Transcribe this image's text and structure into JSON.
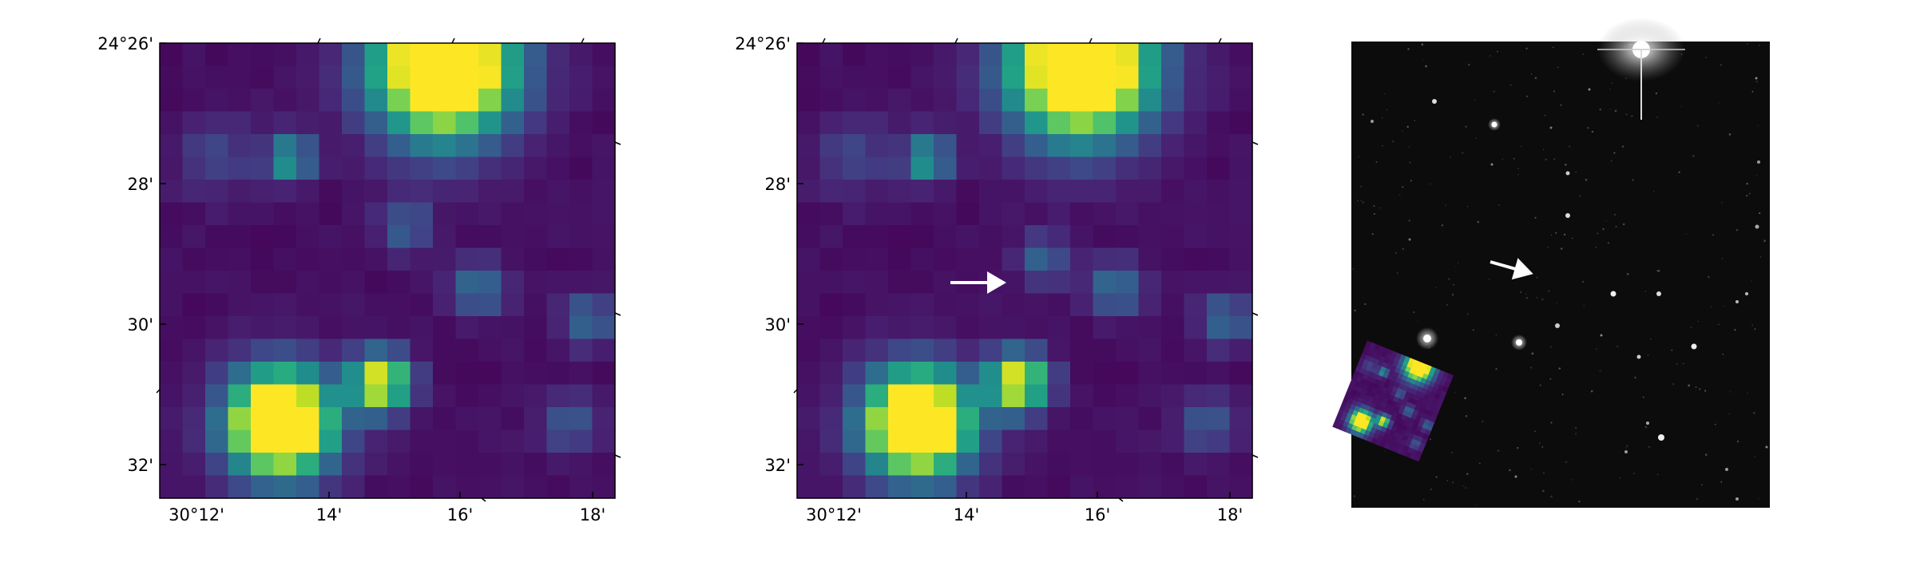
{
  "panels": [
    {
      "id": "panel-1",
      "y_tick_labels": [
        "24°26'",
        "28'",
        "30'",
        "32'"
      ],
      "x_tick_labels": [
        "30°12'",
        "14'",
        "16'",
        "18'"
      ],
      "arrow": false
    },
    {
      "id": "panel-2",
      "y_tick_labels": [
        "24°26'",
        "28'",
        "30'",
        "32'"
      ],
      "x_tick_labels": [
        "30°12'",
        "14'",
        "16'",
        "18'"
      ],
      "arrow": true
    },
    {
      "id": "panel-3",
      "description_free": true
    }
  ],
  "colors": {
    "colormap": "viridis",
    "background_dark": "#440154",
    "bright": "#fde725",
    "star_field": "#0c0c0c",
    "arrow": "#ffffff"
  }
}
